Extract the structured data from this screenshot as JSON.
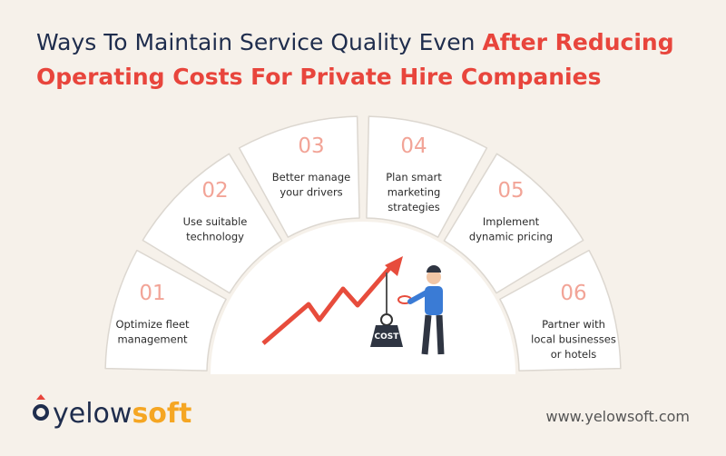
{
  "title": {
    "line1": {
      "dark": "Ways To Maintain Service Quality Even",
      "red": "After Reducing"
    },
    "line2": {
      "red": "Operating Costs For Private Hire Companies"
    }
  },
  "segments": [
    {
      "number": "01",
      "lines": [
        "Optimize fleet",
        "management"
      ]
    },
    {
      "number": "02",
      "lines": [
        "Use suitable",
        "technology"
      ]
    },
    {
      "number": "03",
      "lines": [
        "Better manage",
        "your drivers"
      ]
    },
    {
      "number": "04",
      "lines": [
        "Plan smart",
        "marketing",
        "strategies"
      ]
    },
    {
      "number": "05",
      "lines": [
        "Implement",
        "dynamic pricing"
      ]
    },
    {
      "number": "06",
      "lines": [
        "Partner with",
        "local businesses",
        "or hotels"
      ]
    }
  ],
  "illustration": {
    "weight_label": "COST"
  },
  "logo": {
    "part1": "yelow",
    "part2": "soft"
  },
  "url": "www.yelowsoft.com"
}
